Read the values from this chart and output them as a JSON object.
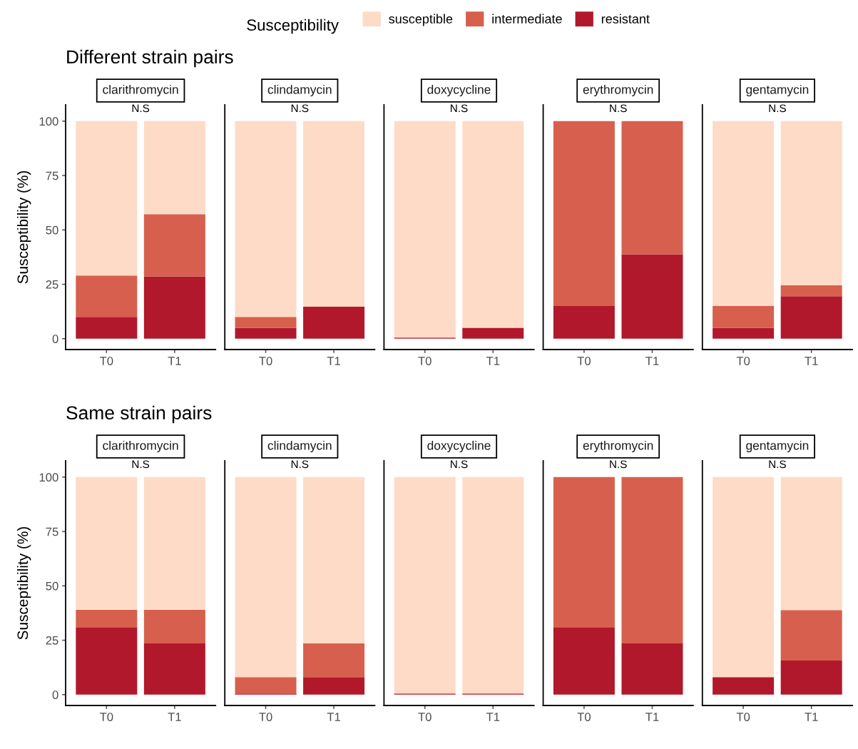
{
  "chart_data": [
    {
      "type": "bar",
      "stacked": true,
      "subtitle": "Different strain pairs",
      "title": "clarithromycin",
      "ylabel": "Susceptibility (%)",
      "legend": "top",
      "legend_title": "Susceptibility",
      "categories": [
        "T0",
        "T1"
      ],
      "series": [
        {
          "name": "resistant",
          "color": "#b2182b",
          "values": [
            10,
            28.6
          ]
        },
        {
          "name": "intermediate",
          "color": "#d6604d",
          "values": [
            19,
            28.6
          ]
        },
        {
          "name": "susceptible",
          "color": "#fddbc7",
          "values": [
            71,
            42.8
          ]
        }
      ],
      "ylim": [
        -5,
        107.5
      ],
      "yticks": [
        0,
        25,
        50,
        75,
        100
      ],
      "annotations": [
        "N.S"
      ]
    },
    {
      "type": "bar",
      "stacked": true,
      "title": "clindamycin",
      "tick_labels": "x",
      "categories": [
        "T0",
        "T1"
      ],
      "series": [
        {
          "name": "resistant",
          "color": "#b2182b",
          "values": [
            5,
            14.7
          ]
        },
        {
          "name": "intermediate",
          "color": "#d6604d",
          "values": [
            5,
            0
          ]
        },
        {
          "name": "susceptible",
          "color": "#fddbc7",
          "values": [
            90,
            85.3
          ]
        }
      ],
      "ylim": [
        -5,
        107.5
      ],
      "yticks": [
        0,
        25,
        50,
        75,
        100
      ],
      "annotations": [
        "N.S"
      ]
    },
    {
      "type": "bar",
      "stacked": true,
      "title": "doxycycline",
      "tick_labels": "x",
      "categories": [
        "T0",
        "T1"
      ],
      "series": [
        {
          "name": "resistant",
          "color": "#b2182b",
          "values": [
            0.5,
            5
          ]
        },
        {
          "name": "intermediate",
          "color": "#d6604d",
          "values": [
            0,
            0
          ]
        },
        {
          "name": "susceptible",
          "color": "#fddbc7",
          "values": [
            99.5,
            95
          ]
        }
      ],
      "ylim": [
        -5,
        107.5
      ],
      "yticks": [
        0,
        25,
        50,
        75,
        100
      ],
      "annotations": [
        "N.S"
      ]
    },
    {
      "type": "bar",
      "stacked": true,
      "title": "erythromycin",
      "tick_labels": "x",
      "categories": [
        "T0",
        "T1"
      ],
      "series": [
        {
          "name": "resistant",
          "color": "#b2182b",
          "values": [
            15,
            38.8
          ]
        },
        {
          "name": "intermediate",
          "color": "#d6604d",
          "values": [
            85,
            61.2
          ]
        },
        {
          "name": "susceptible",
          "color": "#fddbc7",
          "values": [
            0,
            0
          ]
        }
      ],
      "ylim": [
        -5,
        107.5
      ],
      "yticks": [
        0,
        25,
        50,
        75,
        100
      ],
      "annotations": [
        "N.S"
      ]
    },
    {
      "type": "bar",
      "stacked": true,
      "title": "gentamycin",
      "tick_labels": "x",
      "categories": [
        "T0",
        "T1"
      ],
      "series": [
        {
          "name": "resistant",
          "color": "#b2182b",
          "values": [
            5,
            19.5
          ]
        },
        {
          "name": "intermediate",
          "color": "#d6604d",
          "values": [
            10,
            5
          ]
        },
        {
          "name": "susceptible",
          "color": "#fddbc7",
          "values": [
            85,
            75.5
          ]
        }
      ],
      "ylim": [
        -5,
        107.5
      ],
      "yticks": [
        0,
        25,
        50,
        75,
        100
      ],
      "annotations": [
        "N.S"
      ]
    },
    {
      "type": "bar",
      "stacked": true,
      "subtitle": "Same strain pairs",
      "title": "clarithromycin",
      "ylabel": "Susceptibility (%)",
      "categories": [
        "T0",
        "T1"
      ],
      "series": [
        {
          "name": "resistant",
          "color": "#b2182b",
          "values": [
            31,
            23.5
          ]
        },
        {
          "name": "intermediate",
          "color": "#d6604d",
          "values": [
            8,
            15.5
          ]
        },
        {
          "name": "susceptible",
          "color": "#fddbc7",
          "values": [
            61,
            61
          ]
        }
      ],
      "ylim": [
        -5,
        107.5
      ],
      "yticks": [
        0,
        25,
        50,
        75,
        100
      ],
      "annotations": [
        "N.S"
      ]
    },
    {
      "type": "bar",
      "stacked": true,
      "title": "clindamycin",
      "tick_labels": "x",
      "categories": [
        "T0",
        "T1"
      ],
      "series": [
        {
          "name": "resistant",
          "color": "#b2182b",
          "values": [
            0.5,
            8
          ]
        },
        {
          "name": "intermediate",
          "color": "#d6604d",
          "values": [
            7.5,
            15.5
          ]
        },
        {
          "name": "susceptible",
          "color": "#fddbc7",
          "values": [
            92,
            76.5
          ]
        }
      ],
      "ylim": [
        -5,
        107.5
      ],
      "yticks": [
        0,
        25,
        50,
        75,
        100
      ],
      "annotations": [
        "N.S"
      ]
    },
    {
      "type": "bar",
      "stacked": true,
      "title": "doxycycline",
      "tick_labels": "x",
      "categories": [
        "T0",
        "T1"
      ],
      "series": [
        {
          "name": "resistant",
          "color": "#b2182b",
          "values": [
            0.5,
            0.5
          ]
        },
        {
          "name": "intermediate",
          "color": "#d6604d",
          "values": [
            0,
            0
          ]
        },
        {
          "name": "susceptible",
          "color": "#fddbc7",
          "values": [
            99.5,
            99.5
          ]
        }
      ],
      "ylim": [
        -5,
        107.5
      ],
      "yticks": [
        0,
        25,
        50,
        75,
        100
      ],
      "annotations": [
        "N.S"
      ]
    },
    {
      "type": "bar",
      "stacked": true,
      "title": "erythromycin",
      "tick_labels": "x",
      "categories": [
        "T0",
        "T1"
      ],
      "series": [
        {
          "name": "resistant",
          "color": "#b2182b",
          "values": [
            31,
            23.5
          ]
        },
        {
          "name": "intermediate",
          "color": "#d6604d",
          "values": [
            69,
            76.5
          ]
        },
        {
          "name": "susceptible",
          "color": "#fddbc7",
          "values": [
            0,
            0
          ]
        }
      ],
      "ylim": [
        -5,
        107.5
      ],
      "yticks": [
        0,
        25,
        50,
        75,
        100
      ],
      "annotations": [
        "N.S"
      ]
    },
    {
      "type": "bar",
      "stacked": true,
      "title": "gentamycin",
      "tick_labels": "x",
      "categories": [
        "T0",
        "T1"
      ],
      "series": [
        {
          "name": "resistant",
          "color": "#b2182b",
          "values": [
            8,
            15.7
          ]
        },
        {
          "name": "intermediate",
          "color": "#d6604d",
          "values": [
            0,
            23.2
          ]
        },
        {
          "name": "susceptible",
          "color": "#fddbc7",
          "values": [
            92,
            61.1
          ]
        }
      ],
      "ylim": [
        -5,
        107.5
      ],
      "yticks": [
        0,
        25,
        50,
        75,
        100
      ],
      "annotations": [
        "N.S"
      ]
    }
  ]
}
